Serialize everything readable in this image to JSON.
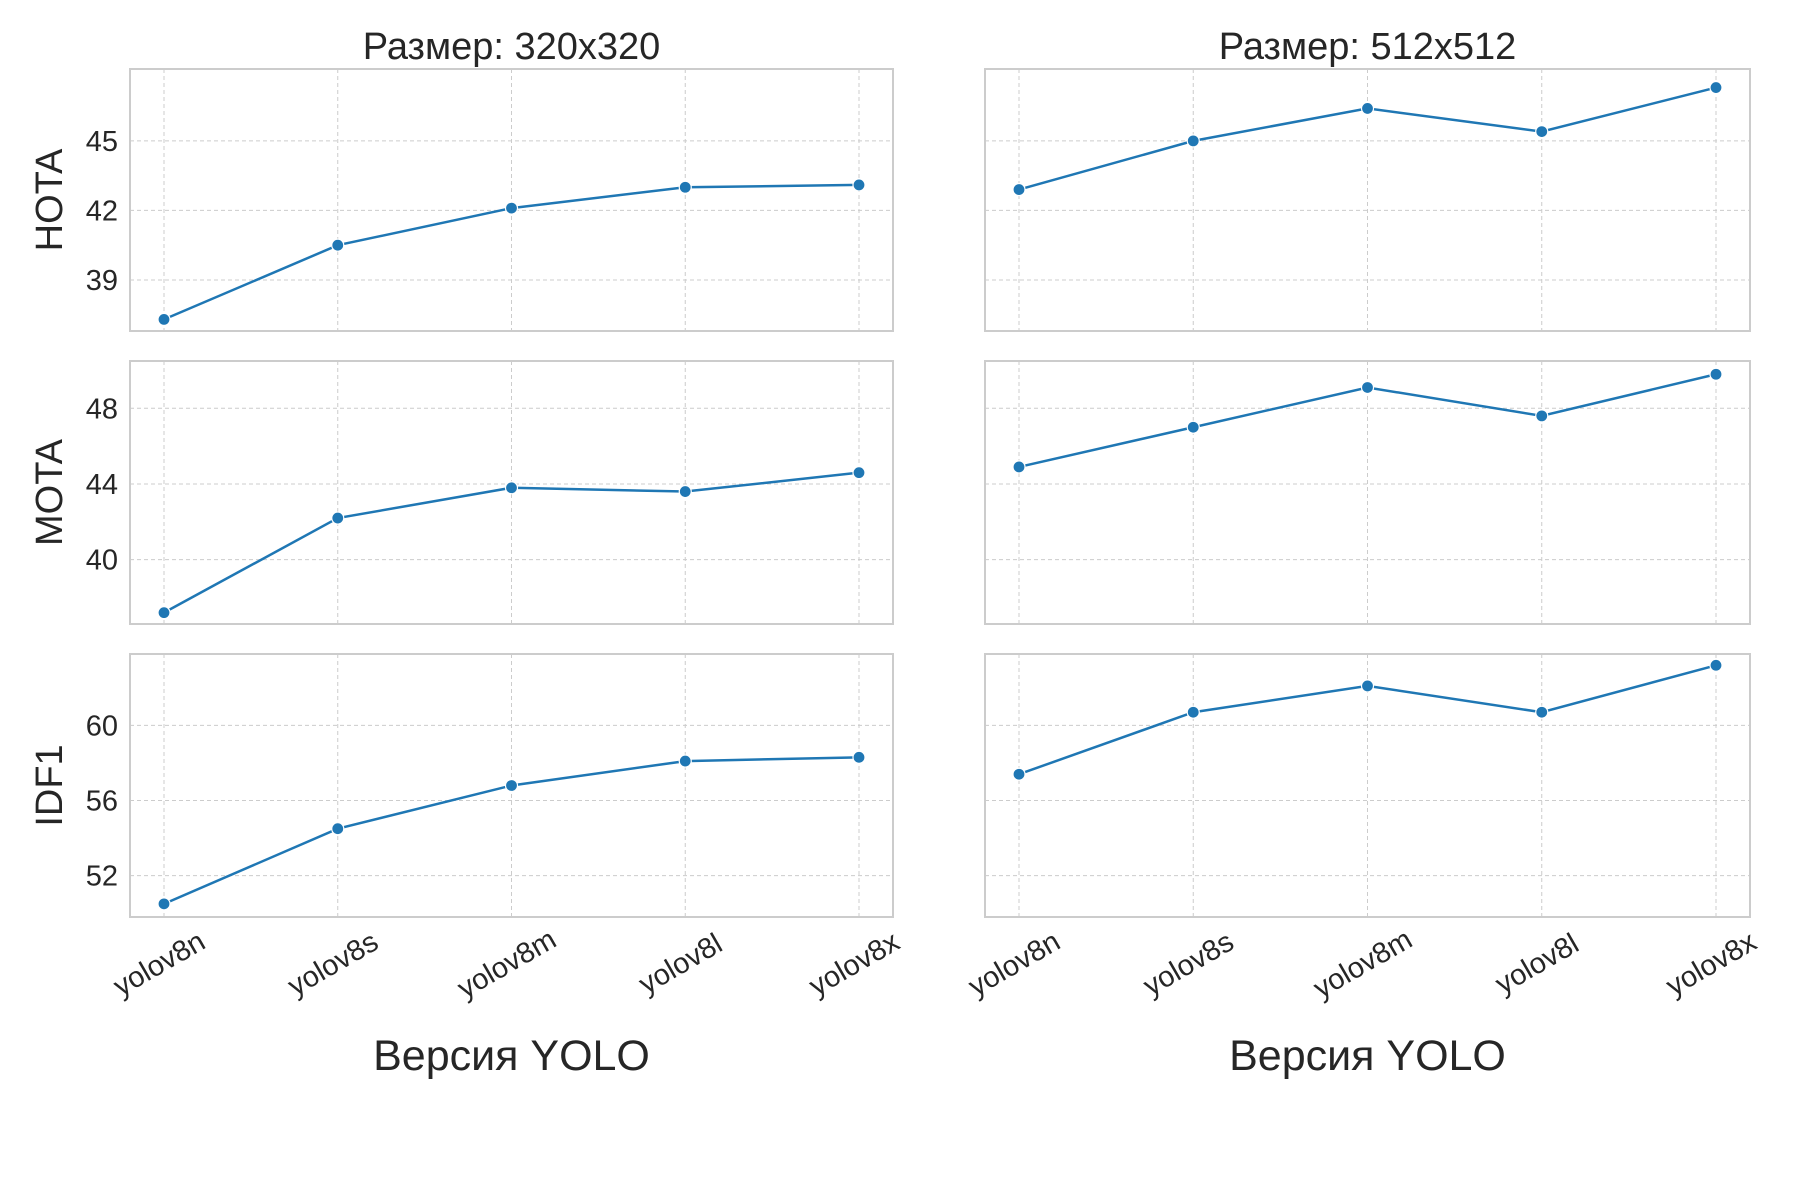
{
  "chart_data": [
    {
      "type": "line",
      "title": "Размер: 320x320",
      "ylabel": "HOTA",
      "xlabel": "",
      "categories": [
        "yolov8n",
        "yolov8s",
        "yolov8m",
        "yolov8l",
        "yolov8x"
      ],
      "series": [
        {
          "values": [
            37.3,
            40.5,
            42.1,
            43.0,
            43.1
          ]
        }
      ],
      "ylim": [
        36.8,
        48.1
      ],
      "yticks": [
        39,
        42,
        45
      ],
      "grid": true
    },
    {
      "type": "line",
      "title": "Размер: 512x512",
      "ylabel": "",
      "xlabel": "",
      "categories": [
        "yolov8n",
        "yolov8s",
        "yolov8m",
        "yolov8l",
        "yolov8x"
      ],
      "series": [
        {
          "values": [
            42.9,
            45.0,
            46.4,
            45.4,
            47.3
          ]
        }
      ],
      "ylim": [
        36.8,
        48.1
      ],
      "yticks": [
        39,
        42,
        45
      ],
      "grid": true
    },
    {
      "type": "line",
      "title": "",
      "ylabel": "MOTA",
      "xlabel": "",
      "categories": [
        "yolov8n",
        "yolov8s",
        "yolov8m",
        "yolov8l",
        "yolov8x"
      ],
      "series": [
        {
          "values": [
            37.2,
            42.2,
            43.8,
            43.6,
            44.6
          ]
        }
      ],
      "ylim": [
        36.6,
        50.5
      ],
      "yticks": [
        40,
        44,
        48
      ],
      "grid": true
    },
    {
      "type": "line",
      "title": "",
      "ylabel": "",
      "xlabel": "",
      "categories": [
        "yolov8n",
        "yolov8s",
        "yolov8m",
        "yolov8l",
        "yolov8x"
      ],
      "series": [
        {
          "values": [
            44.9,
            47.0,
            49.1,
            47.6,
            49.8
          ]
        }
      ],
      "ylim": [
        36.6,
        50.5
      ],
      "yticks": [
        40,
        44,
        48
      ],
      "grid": true
    },
    {
      "type": "line",
      "title": "",
      "ylabel": "IDF1",
      "xlabel": "Версия YOLO",
      "categories": [
        "yolov8n",
        "yolov8s",
        "yolov8m",
        "yolov8l",
        "yolov8x"
      ],
      "series": [
        {
          "values": [
            50.5,
            54.5,
            56.8,
            58.1,
            58.3
          ]
        }
      ],
      "ylim": [
        49.8,
        63.8
      ],
      "yticks": [
        52,
        56,
        60
      ],
      "grid": true
    },
    {
      "type": "line",
      "title": "",
      "ylabel": "",
      "xlabel": "Версия YOLO",
      "categories": [
        "yolov8n",
        "yolov8s",
        "yolov8m",
        "yolov8l",
        "yolov8x"
      ],
      "series": [
        {
          "values": [
            57.4,
            60.7,
            62.1,
            60.7,
            63.2
          ]
        }
      ],
      "ylim": [
        49.8,
        63.8
      ],
      "yticks": [
        52,
        56,
        60
      ],
      "grid": true
    }
  ],
  "colors": {
    "series": "#1f77b4",
    "grid": "#cccccc",
    "frame": "#cccccc",
    "text": "#262626"
  }
}
